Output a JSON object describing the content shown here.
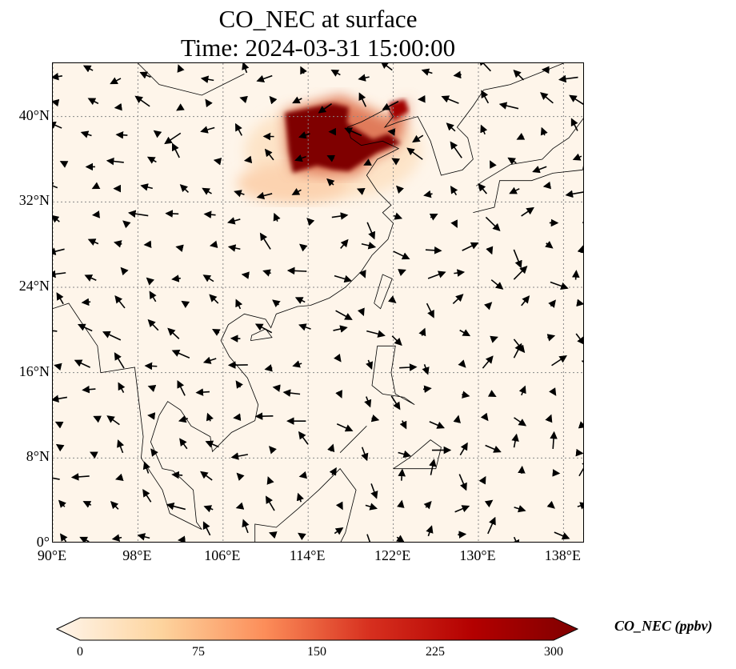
{
  "title": {
    "line1": "CO_NEC at surface",
    "line2": "Time: 2024-03-31 15:00:00"
  },
  "map": {
    "lon_range": [
      90,
      140
    ],
    "lat_range": [
      0,
      45
    ],
    "x_ticks": [
      "90°E",
      "98°E",
      "106°E",
      "114°E",
      "122°E",
      "130°E",
      "138°E"
    ],
    "x_tick_values": [
      90,
      98,
      106,
      114,
      122,
      130,
      138
    ],
    "y_ticks": [
      "0°",
      "8°N",
      "16°N",
      "24°N",
      "32°N",
      "40°N"
    ],
    "y_tick_values": [
      0,
      8,
      16,
      24,
      32,
      40
    ]
  },
  "colorbar": {
    "label": "CO_NEC (ppbv)",
    "ticks": [
      "0",
      "75",
      "150",
      "225",
      "300"
    ],
    "range": [
      0,
      300
    ],
    "colors": [
      "#fff5eb",
      "#fdd49e",
      "#fc8d59",
      "#d7301f",
      "#b30000",
      "#7f0000"
    ]
  }
}
